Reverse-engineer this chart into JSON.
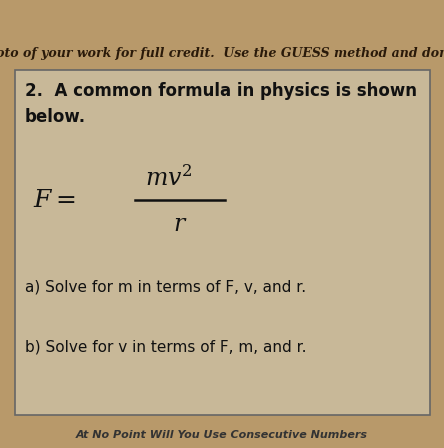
{
  "bg_color": "#b8996a",
  "box_bg_color": "#c8b898",
  "box_edge_color": "#666666",
  "header_text": "hoto of your work for full credit.  Use the GUESS method and don't",
  "header_color": "#2a1a0a",
  "question_number": "2.",
  "question_line1": "2.  A common formula in physics is shown",
  "question_line2": "below.",
  "formula_numerator": "mv^{2}",
  "formula_denominator": "r",
  "part_a": "a) Solve for m in terms of F, v, and r.",
  "part_b": "b) Solve for v in terms of F, m, and r.",
  "footer_text": "At No Point Will You Use Consecutive Numbers",
  "text_color": "#111111",
  "title_fontsize": 12,
  "body_fontsize": 11,
  "formula_fontsize": 16,
  "header_fontsize": 9
}
